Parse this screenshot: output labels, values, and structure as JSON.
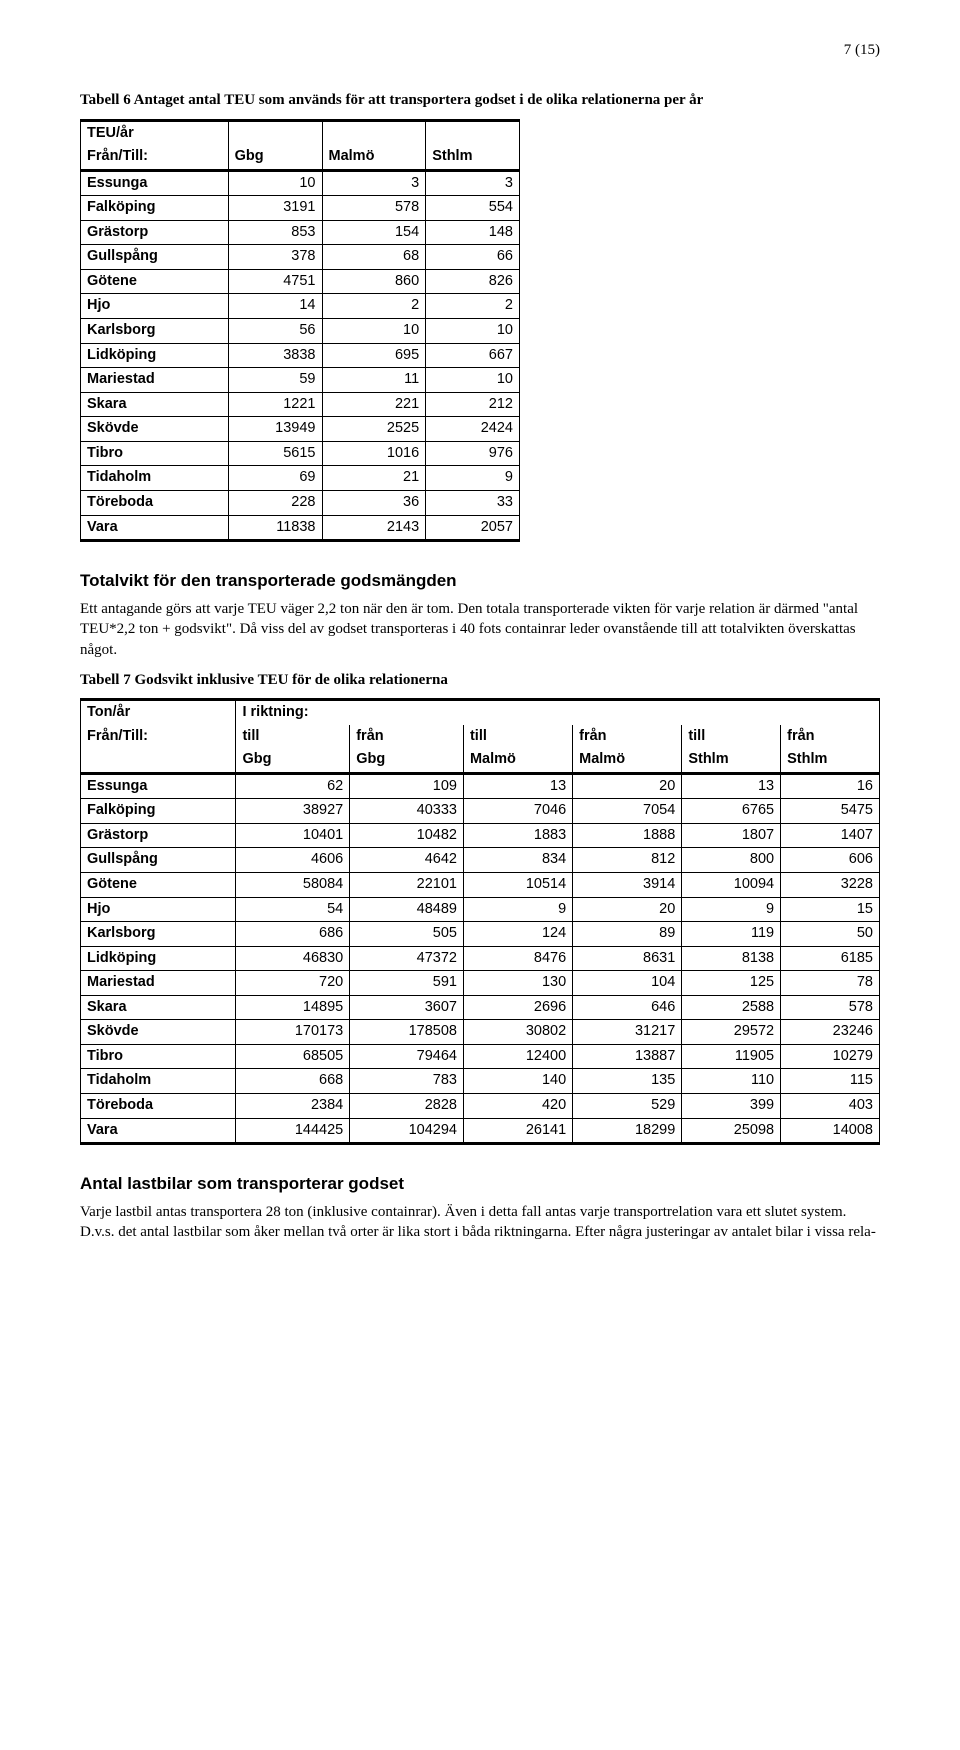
{
  "page_number": "7 (15)",
  "table6": {
    "caption": "Tabell 6 Antaget antal TEU som används för att transportera godset i de olika relationerna per år",
    "header_top": "TEU/år",
    "header_left": "Från/Till:",
    "cols": [
      "Gbg",
      "Malmö",
      "Sthlm"
    ],
    "rows": [
      {
        "label": "Essunga",
        "v": [
          "10",
          "3",
          "3"
        ]
      },
      {
        "label": "Falköping",
        "v": [
          "3191",
          "578",
          "554"
        ]
      },
      {
        "label": "Grästorp",
        "v": [
          "853",
          "154",
          "148"
        ]
      },
      {
        "label": "Gullspång",
        "v": [
          "378",
          "68",
          "66"
        ]
      },
      {
        "label": "Götene",
        "v": [
          "4751",
          "860",
          "826"
        ]
      },
      {
        "label": "Hjo",
        "v": [
          "14",
          "2",
          "2"
        ]
      },
      {
        "label": "Karlsborg",
        "v": [
          "56",
          "10",
          "10"
        ]
      },
      {
        "label": "Lidköping",
        "v": [
          "3838",
          "695",
          "667"
        ]
      },
      {
        "label": "Mariestad",
        "v": [
          "59",
          "11",
          "10"
        ]
      },
      {
        "label": "Skara",
        "v": [
          "1221",
          "221",
          "212"
        ]
      },
      {
        "label": "Skövde",
        "v": [
          "13949",
          "2525",
          "2424"
        ]
      },
      {
        "label": "Tibro",
        "v": [
          "5615",
          "1016",
          "976"
        ]
      },
      {
        "label": "Tidaholm",
        "v": [
          "69",
          "21",
          "9"
        ]
      },
      {
        "label": "Töreboda",
        "v": [
          "228",
          "36",
          "33"
        ]
      },
      {
        "label": "Vara",
        "v": [
          "11838",
          "2143",
          "2057"
        ]
      }
    ]
  },
  "section1": {
    "heading": "Totalvikt för den transporterade godsmängden",
    "para": "Ett antagande görs att varje TEU väger 2,2 ton när den är tom. Den totala transporterade vikten för varje relation är därmed \"antal TEU*2,2 ton + godsvikt\". Då viss del av godset transporteras i 40 fots containrar leder ovanstående till att totalvikten överskattas något."
  },
  "table7": {
    "caption": "Tabell 7 Godsvikt inklusive TEU för de olika relationerna",
    "h1_left": "Ton/år",
    "h1_right": "I riktning:",
    "h2_left": "Från/Till:",
    "h2_cols": [
      "till",
      "från",
      "till",
      "från",
      "till",
      "från"
    ],
    "h3_cols": [
      "Gbg",
      "Gbg",
      "Malmö",
      "Malmö",
      "Sthlm",
      "Sthlm"
    ],
    "rows": [
      {
        "label": "Essunga",
        "v": [
          "62",
          "109",
          "13",
          "20",
          "13",
          "16"
        ]
      },
      {
        "label": "Falköping",
        "v": [
          "38927",
          "40333",
          "7046",
          "7054",
          "6765",
          "5475"
        ]
      },
      {
        "label": "Grästorp",
        "v": [
          "10401",
          "10482",
          "1883",
          "1888",
          "1807",
          "1407"
        ]
      },
      {
        "label": "Gullspång",
        "v": [
          "4606",
          "4642",
          "834",
          "812",
          "800",
          "606"
        ]
      },
      {
        "label": "Götene",
        "v": [
          "58084",
          "22101",
          "10514",
          "3914",
          "10094",
          "3228"
        ]
      },
      {
        "label": "Hjo",
        "v": [
          "54",
          "48489",
          "9",
          "20",
          "9",
          "15"
        ]
      },
      {
        "label": "Karlsborg",
        "v": [
          "686",
          "505",
          "124",
          "89",
          "119",
          "50"
        ]
      },
      {
        "label": "Lidköping",
        "v": [
          "46830",
          "47372",
          "8476",
          "8631",
          "8138",
          "6185"
        ]
      },
      {
        "label": "Mariestad",
        "v": [
          "720",
          "591",
          "130",
          "104",
          "125",
          "78"
        ]
      },
      {
        "label": "Skara",
        "v": [
          "14895",
          "3607",
          "2696",
          "646",
          "2588",
          "578"
        ]
      },
      {
        "label": "Skövde",
        "v": [
          "170173",
          "178508",
          "30802",
          "31217",
          "29572",
          "23246"
        ]
      },
      {
        "label": "Tibro",
        "v": [
          "68505",
          "79464",
          "12400",
          "13887",
          "11905",
          "10279"
        ]
      },
      {
        "label": "Tidaholm",
        "v": [
          "668",
          "783",
          "140",
          "135",
          "110",
          "115"
        ]
      },
      {
        "label": "Töreboda",
        "v": [
          "2384",
          "2828",
          "420",
          "529",
          "399",
          "403"
        ]
      },
      {
        "label": "Vara",
        "v": [
          "144425",
          "104294",
          "26141",
          "18299",
          "25098",
          "14008"
        ]
      }
    ]
  },
  "section2": {
    "heading": "Antal lastbilar som transporterar godset",
    "para": "Varje lastbil antas transportera 28 ton (inklusive containrar). Även i detta fall antas varje transportrelation vara ett slutet system. D.v.s. det antal lastbilar som åker mellan två orter är lika stort i båda riktningarna. Efter några justeringar av antalet bilar i vissa rela-"
  }
}
